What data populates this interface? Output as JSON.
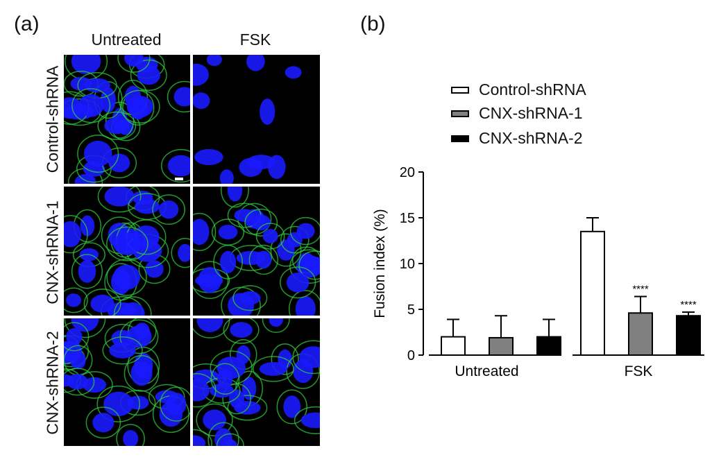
{
  "panel_a": {
    "label": "(a)",
    "columns": [
      "Untreated",
      "FSK"
    ],
    "rows": [
      "Control-shRNA",
      "CNX-shRNA-1",
      "CNX-shRNA-2"
    ],
    "colors": {
      "nuclei": "#1a1aff",
      "membrane": "#2ecc40",
      "background": "#000000",
      "scale_bar": "#ffffff"
    }
  },
  "panel_b": {
    "label": "(b)"
  },
  "chart_data": {
    "type": "bar",
    "categories": [
      "Untreated",
      "FSK"
    ],
    "ylabel": "Fusion index (%)",
    "xlabel": "",
    "ylim": [
      0,
      20
    ],
    "yticks": [
      "0",
      "5",
      "10",
      "15",
      "20"
    ],
    "series": [
      {
        "name": "Control-shRNA",
        "values": [
          2.0,
          13.5
        ],
        "errors": [
          1.9,
          1.5
        ],
        "fill": "#ffffff",
        "annotations": [
          "",
          ""
        ]
      },
      {
        "name": "CNX-shRNA-1",
        "values": [
          1.9,
          4.6
        ],
        "errors": [
          2.4,
          1.8
        ],
        "fill": "#808080",
        "annotations": [
          "",
          "****"
        ]
      },
      {
        "name": "CNX-shRNA-2",
        "values": [
          2.0,
          4.3
        ],
        "errors": [
          1.9,
          0.4
        ],
        "fill": "#000000",
        "annotations": [
          "",
          "****"
        ]
      }
    ],
    "legend_position": "top-left",
    "grid": false
  }
}
